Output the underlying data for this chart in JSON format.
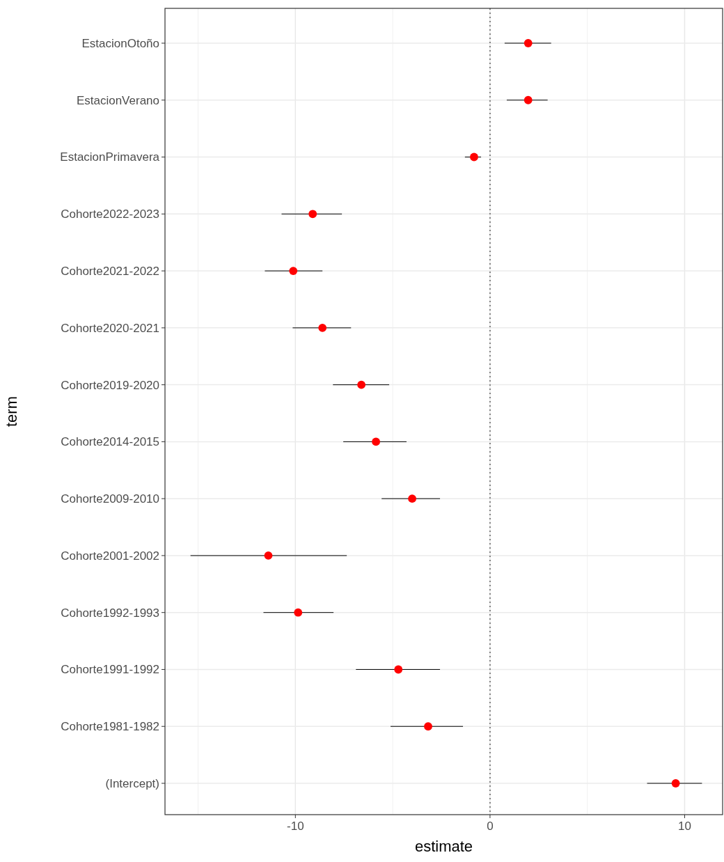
{
  "chart_data": {
    "type": "scatter",
    "orientation": "horizontal",
    "xlabel": "estimate",
    "ylabel": "term",
    "categories": [
      "EstacionOtoño",
      "EstacionVerano",
      "EstacionPrimavera",
      "Cohorte2022-2023",
      "Cohorte2021-2022",
      "Cohorte2020-2021",
      "Cohorte2019-2020",
      "Cohorte2014-2015",
      "Cohorte2009-2010",
      "Cohorte2001-2002",
      "Cohorte1992-1993",
      "Cohorte1991-1992",
      "Cohorte1981-1982",
      "(Intercept)"
    ],
    "series": [
      {
        "color": "#ff0000",
        "values": [
          1.96,
          1.96,
          -0.82,
          -9.11,
          -10.11,
          -8.61,
          -6.61,
          -5.86,
          -4.0,
          -11.39,
          -9.86,
          -4.71,
          -3.18,
          9.54
        ],
        "errors": [
          [
            0.75,
            3.14
          ],
          [
            0.86,
            2.96
          ],
          [
            -1.29,
            -0.46
          ],
          [
            -10.71,
            -7.61
          ],
          [
            -11.57,
            -8.61
          ],
          [
            -10.14,
            -7.14
          ],
          [
            -8.07,
            -5.18
          ],
          [
            -7.54,
            -4.29
          ],
          [
            -5.57,
            -2.57
          ],
          [
            -15.39,
            -7.36
          ],
          [
            -11.64,
            -8.04
          ],
          [
            -6.89,
            -2.57
          ],
          [
            -5.11,
            -1.39
          ],
          [
            8.07,
            10.89
          ]
        ]
      }
    ],
    "xlim": [
      -16.7,
      11.95
    ],
    "xticks": [
      -10,
      0,
      10
    ],
    "grid": true,
    "marker": "circle",
    "ref_lines": [
      {
        "axis": "x",
        "value": 0,
        "color": "#808080",
        "line_style": "dotted"
      }
    ]
  }
}
